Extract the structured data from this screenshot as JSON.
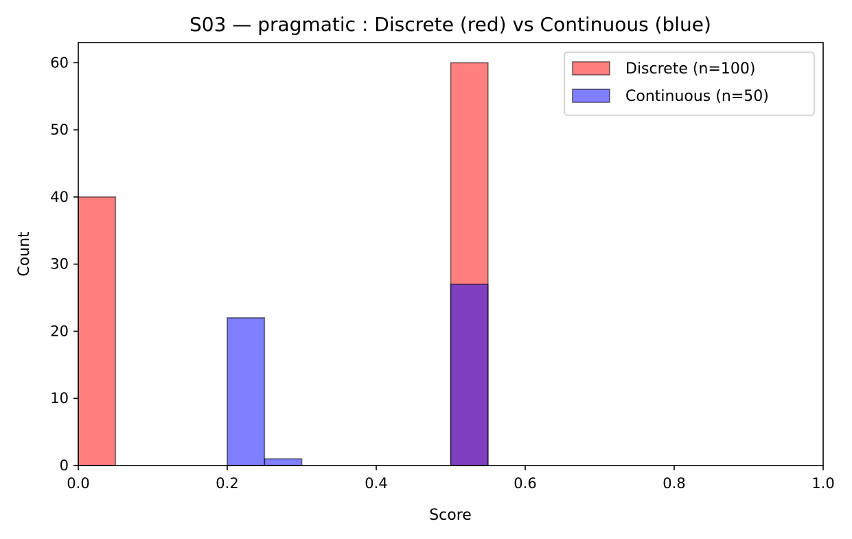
{
  "chart_data": {
    "type": "bar",
    "title": "S03 — pragmatic : Discrete (red) vs Continuous (blue)",
    "xlabel": "Score",
    "ylabel": "Count",
    "xlim": [
      0.0,
      1.0
    ],
    "ylim": [
      0,
      63
    ],
    "bin_width": 0.05,
    "xticks": [
      0.0,
      0.2,
      0.4,
      0.6,
      0.8,
      1.0
    ],
    "xtick_labels": [
      "0.0",
      "0.2",
      "0.4",
      "0.6",
      "0.8",
      "1.0"
    ],
    "yticks": [
      0,
      10,
      20,
      30,
      40,
      50,
      60
    ],
    "yticks_labels": [
      "0",
      "10",
      "20",
      "30",
      "40",
      "50",
      "60"
    ],
    "grid": false,
    "legend_position": "top-right",
    "series": [
      {
        "name": "Discrete (n=100)",
        "color": "#ff0000",
        "alpha": 0.5,
        "bins": [
          {
            "x0": 0.0,
            "x1": 0.05,
            "count": 40
          },
          {
            "x0": 0.5,
            "x1": 0.55,
            "count": 60
          }
        ]
      },
      {
        "name": "Continuous (n=50)",
        "color": "#0000ff",
        "alpha": 0.5,
        "bins": [
          {
            "x0": 0.2,
            "x1": 0.25,
            "count": 22
          },
          {
            "x0": 0.25,
            "x1": 0.3,
            "count": 1
          },
          {
            "x0": 0.5,
            "x1": 0.55,
            "count": 27
          }
        ]
      }
    ]
  }
}
